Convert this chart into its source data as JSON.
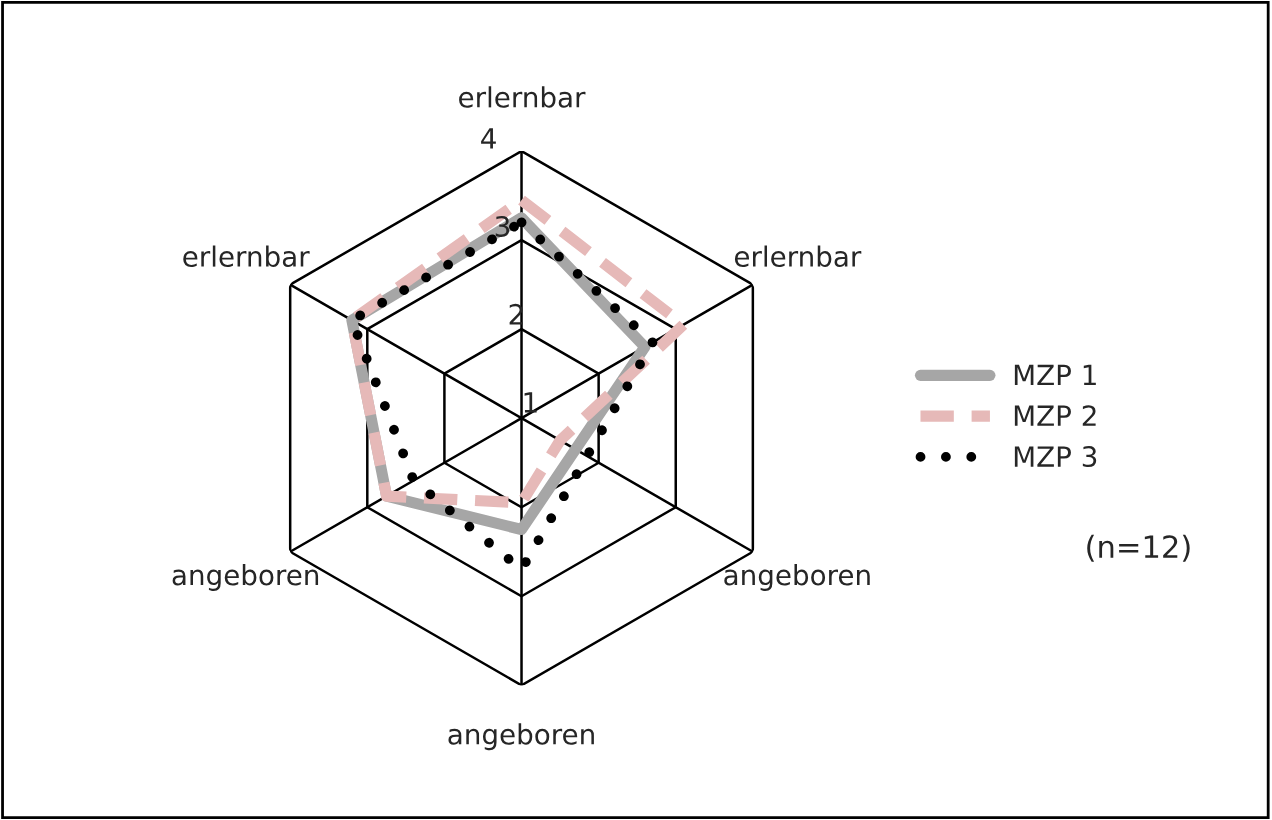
{
  "chart_data": {
    "type": "radar",
    "categories": [
      "erlernbar",
      "erlernbar",
      "angeboren",
      "angeboren",
      "angeboren",
      "erlernbar"
    ],
    "series": [
      {
        "name": "MZP 1",
        "color": "#a6a6a6",
        "line_style": "solid",
        "values": [
          3.25,
          2.6,
          1.7,
          2.25,
          2.75,
          3.2
        ]
      },
      {
        "name": "MZP 2",
        "color": "#e6b9b8",
        "line_style": "dashed",
        "values": [
          3.45,
          3.1,
          1.5,
          1.95,
          2.75,
          3.2
        ]
      },
      {
        "name": "MZP 3",
        "color": "#000000",
        "line_style": "dotted",
        "values": [
          3.2,
          2.7,
          1.85,
          2.7,
          2.4,
          3.2
        ]
      }
    ],
    "ylim": [
      1,
      4
    ],
    "yticks": [
      1,
      2,
      3,
      4
    ],
    "grid": true,
    "legend": "right",
    "annotations": [
      "(n=12)"
    ]
  }
}
